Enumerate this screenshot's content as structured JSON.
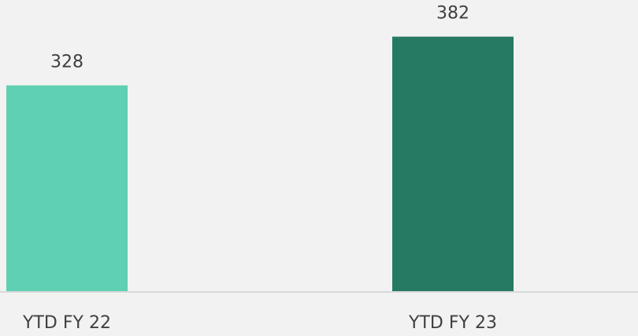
{
  "chart_data": {
    "type": "bar",
    "categories": [
      "YTD FY 22",
      "YTD FY 23"
    ],
    "values": [
      328,
      382
    ],
    "colors": [
      "#5fd0b2",
      "#267a63"
    ],
    "ylim": [
      100,
      420
    ]
  }
}
